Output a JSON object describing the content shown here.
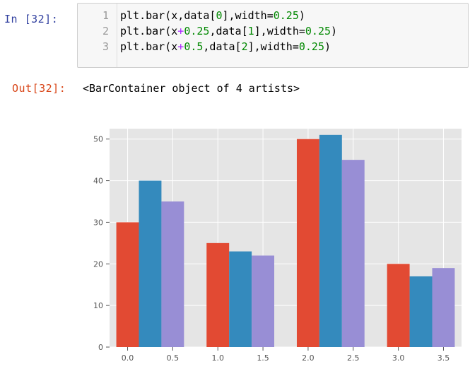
{
  "cell": {
    "in_prompt": "In  [32]:",
    "out_prompt": "Out[32]:",
    "code_lines": [
      {
        "num": "1",
        "parts": [
          {
            "t": "plt.",
            "c": ""
          },
          {
            "t": "bar",
            "c": ""
          },
          {
            "t": "(",
            "c": "paren"
          },
          {
            "t": "x,",
            "c": ""
          },
          {
            "t": "data",
            "c": ""
          },
          {
            "t": "[",
            "c": ""
          },
          {
            "t": "0",
            "c": "num"
          },
          {
            "t": "],width=",
            "c": ""
          },
          {
            "t": "0.25",
            "c": "num"
          },
          {
            "t": ")",
            "c": "paren"
          }
        ]
      },
      {
        "num": "2",
        "parts": [
          {
            "t": "plt.",
            "c": ""
          },
          {
            "t": "bar",
            "c": ""
          },
          {
            "t": "(",
            "c": "paren"
          },
          {
            "t": "x",
            "c": ""
          },
          {
            "t": "+",
            "c": "op"
          },
          {
            "t": "0.25",
            "c": "num"
          },
          {
            "t": ",data[",
            "c": ""
          },
          {
            "t": "1",
            "c": "num"
          },
          {
            "t": "],width=",
            "c": ""
          },
          {
            "t": "0.25",
            "c": "num"
          },
          {
            "t": ")",
            "c": "paren"
          }
        ]
      },
      {
        "num": "3",
        "parts": [
          {
            "t": "plt.",
            "c": ""
          },
          {
            "t": "bar",
            "c": ""
          },
          {
            "t": "(",
            "c": "paren"
          },
          {
            "t": "x",
            "c": ""
          },
          {
            "t": "+",
            "c": "op"
          },
          {
            "t": "0.5",
            "c": "num"
          },
          {
            "t": ",data[",
            "c": ""
          },
          {
            "t": "2",
            "c": "num"
          },
          {
            "t": "],width=",
            "c": ""
          },
          {
            "t": "0.25",
            "c": "num"
          },
          {
            "t": ")",
            "c": "paren"
          }
        ]
      }
    ],
    "output_text": "<BarContainer object of 4 artists>"
  },
  "colors": {
    "in_prompt": "#303f9f",
    "out_prompt": "#d84315",
    "number_token": "#008800",
    "operator_token": "#aa22ff",
    "plot_background": "#e5e5e5",
    "grid": "#ffffff"
  },
  "chart_data": {
    "type": "bar",
    "style": "ggplot",
    "title": "",
    "xlabel": "",
    "ylabel": "",
    "grid": true,
    "xlim": [
      -0.2,
      3.7
    ],
    "ylim": [
      0,
      52.5
    ],
    "xticks": [
      0.0,
      0.5,
      1.0,
      1.5,
      2.0,
      2.5,
      3.0,
      3.5
    ],
    "xtick_labels": [
      "0.0",
      "0.5",
      "1.0",
      "1.5",
      "2.0",
      "2.5",
      "3.0",
      "3.5"
    ],
    "yticks": [
      0,
      10,
      20,
      30,
      40,
      50
    ],
    "ytick_labels": [
      "0",
      "10",
      "20",
      "30",
      "40",
      "50"
    ],
    "bar_width": 0.25,
    "series": [
      {
        "x": [
          0,
          1,
          2,
          3
        ],
        "values": [
          30,
          25,
          50,
          20
        ],
        "color": "#E24A33"
      },
      {
        "x": [
          0.25,
          1.25,
          2.25,
          3.25
        ],
        "values": [
          40,
          23,
          51,
          17
        ],
        "color": "#348ABD"
      },
      {
        "x": [
          0.5,
          1.5,
          2.5,
          3.5
        ],
        "values": [
          35,
          22,
          45,
          19
        ],
        "color": "#988ED5"
      }
    ]
  }
}
